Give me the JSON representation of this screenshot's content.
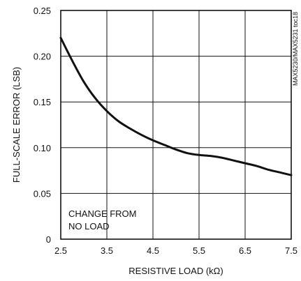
{
  "chart_data": {
    "type": "line",
    "x_ticks": [
      "2.5",
      "3.5",
      "4.5",
      "5.5",
      "6.5",
      "7.5"
    ],
    "y_ticks": [
      "0",
      "0.05",
      "0.10",
      "0.15",
      "0.20",
      "0.25"
    ],
    "xlim": [
      2.5,
      7.5
    ],
    "ylim": [
      0,
      0.25
    ],
    "grid": true,
    "xlabel": "RESISTIVE LOAD (kΩ)",
    "ylabel": "FULL-SCALE ERROR (LSB)",
    "side_note": "MAX5230/MAX5231 toc18",
    "annotation": [
      "CHANGE FROM",
      "NO LOAD"
    ],
    "series": [
      {
        "x": [
          2.5,
          2.75,
          3.0,
          3.25,
          3.5,
          3.75,
          4.0,
          4.25,
          4.5,
          4.75,
          5.0,
          5.25,
          5.5,
          5.75,
          6.0,
          6.25,
          6.5,
          6.75,
          7.0,
          7.25,
          7.5
        ],
        "y": [
          0.22,
          0.195,
          0.172,
          0.154,
          0.14,
          0.129,
          0.121,
          0.114,
          0.108,
          0.103,
          0.098,
          0.094,
          0.092,
          0.091,
          0.089,
          0.086,
          0.083,
          0.08,
          0.076,
          0.073,
          0.07
        ]
      }
    ]
  }
}
